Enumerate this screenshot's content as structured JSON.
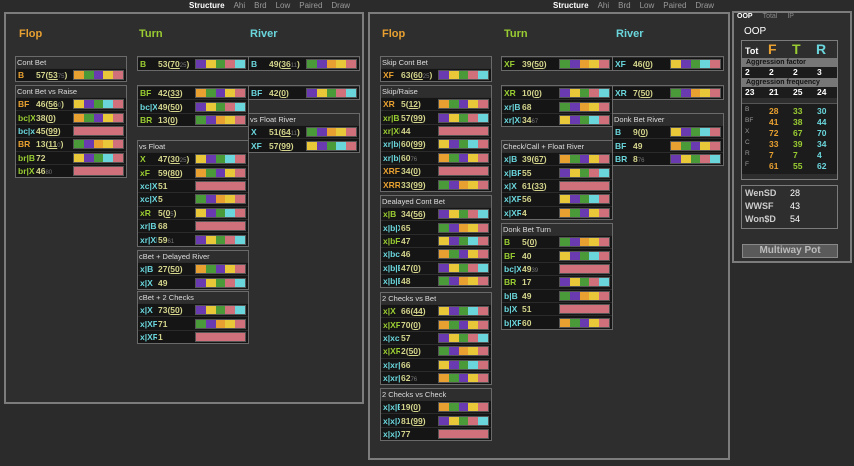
{
  "top_tabs": [
    {
      "labels": [
        "Structure",
        "Ahi",
        "Brd",
        "Low",
        "Paired",
        "Draw"
      ]
    },
    {
      "labels": [
        "Structure",
        "Ahi",
        "Brd",
        "Low",
        "Paired",
        "Draw"
      ]
    }
  ],
  "panels": [
    {
      "heads": [
        "Flop",
        "Turn",
        "River"
      ],
      "sections": [
        {
          "title": "Cont Bet",
          "rows": [
            {
              "a": "B",
              "c": "or",
              "v": "57(",
              "u": "53",
              "s": "75",
              "e": ")"
            }
          ]
        },
        {
          "title": "",
          "rows": [
            {
              "a": "B",
              "c": "gr",
              "v": "53(",
              "u": "70",
              "s": "25",
              "e": ")"
            }
          ]
        },
        {
          "title": "",
          "rows": [
            {
              "a": "B",
              "c": "cy",
              "v": "49(",
              "u": "36",
              "s": "11",
              "e": ")"
            }
          ]
        },
        {
          "title": "Cont Bet vs Raise",
          "rows": [
            {
              "a": "BF",
              "c": "or",
              "v": "46(",
              "u": "56",
              "s": "0",
              "e": ")"
            },
            {
              "a": "bc|XF",
              "c": "gr",
              "v": "38(",
              "u": "0",
              "s": "",
              "e": ")"
            },
            {
              "a": "bc|xc|XF",
              "c": "cy",
              "v": "45(",
              "u": "99",
              "s": "",
              "e": ")"
            },
            {
              "a": "BR",
              "c": "or",
              "v": "13(",
              "u": "11",
              "s": "0",
              "e": ")"
            },
            {
              "a": "br|B",
              "c": "gr",
              "v": "72",
              "u": "",
              "s": "",
              "e": ""
            },
            {
              "a": "br|XF",
              "c": "gr",
              "v": "46",
              "u": "",
              "s": "80",
              "e": ""
            }
          ]
        },
        {
          "title": "",
          "rows": [
            {
              "a": "BF",
              "c": "gr",
              "v": "42(",
              "u": "33",
              "s": "",
              "e": ")"
            },
            {
              "a": "bc|XF",
              "c": "cy",
              "v": "49(",
              "u": "50",
              "s": "",
              "e": ")"
            },
            {
              "a": "BR",
              "c": "gr",
              "v": "13(",
              "u": "0",
              "s": "",
              "e": ")"
            }
          ]
        },
        {
          "title": "",
          "rows": [
            {
              "a": "BF",
              "c": "cy",
              "v": "42(",
              "u": "0",
              "s": "",
              "e": ")"
            }
          ]
        },
        {
          "title": "vs Float River",
          "rows": [
            {
              "a": "X",
              "c": "cy",
              "v": "51(",
              "u": "64",
              "s": "11",
              "e": ")"
            },
            {
              "a": "XF",
              "c": "cy",
              "v": "57(",
              "u": "99",
              "s": "",
              "e": ")"
            }
          ]
        },
        {
          "title": "vs Float",
          "rows": [
            {
              "a": "X",
              "c": "gr",
              "v": "47(",
              "u": "30",
              "s": "25",
              "e": ")"
            },
            {
              "a": "xF",
              "c": "gr",
              "v": "59(",
              "u": "80",
              "s": "",
              "e": ")"
            },
            {
              "a": "xc|XF",
              "c": "cy",
              "v": "51",
              "u": "",
              "s": "",
              "e": ""
            },
            {
              "a": "xc|XR",
              "c": "cy",
              "v": "5",
              "u": "",
              "s": "",
              "e": ""
            },
            {
              "a": "xR",
              "c": "gr",
              "v": "5(",
              "u": "0",
              "s": "5",
              "e": ")"
            },
            {
              "a": "xr|B",
              "c": "cy",
              "v": "68",
              "u": "",
              "s": "",
              "e": ""
            },
            {
              "a": "xr|XF",
              "c": "cy",
              "v": "59",
              "u": "",
              "s": "61",
              "e": ""
            }
          ]
        },
        {
          "title": "cBet + Delayed River",
          "rows": [
            {
              "a": "x|B",
              "c": "cy",
              "v": "27(",
              "u": "50",
              "s": "",
              "e": ")"
            },
            {
              "a": "x|X",
              "c": "cy",
              "v": "49",
              "u": "",
              "s": "",
              "e": ""
            }
          ]
        },
        {
          "title": "cBet + 2 Checks",
          "rows": [
            {
              "a": "x|X",
              "c": "cy",
              "v": "73(",
              "u": "50",
              "s": "",
              "e": ")"
            },
            {
              "a": "x|XF",
              "c": "cy",
              "v": "71",
              "u": "",
              "s": "",
              "e": ""
            },
            {
              "a": "x|XR",
              "c": "cy",
              "v": "1",
              "u": "",
              "s": "",
              "e": ""
            }
          ]
        }
      ]
    },
    {
      "heads": [
        "Flop",
        "Turn",
        "River"
      ],
      "sections": [
        {
          "title": "Skip Cont Bet",
          "rows": [
            {
              "a": "XF",
              "c": "or",
              "v": "63(",
              "u": "60",
              "s": "25",
              "e": ")"
            }
          ]
        },
        {
          "title": "",
          "rows": [
            {
              "a": "XF",
              "c": "gr",
              "v": "39(",
              "u": "50",
              "s": "",
              "e": ")"
            }
          ]
        },
        {
          "title": "",
          "rows": [
            {
              "a": "XF",
              "c": "cy",
              "v": "46(",
              "u": "0",
              "s": "",
              "e": ")"
            }
          ]
        },
        {
          "title": "Skip/Raise",
          "rows": [
            {
              "a": "XR",
              "c": "or",
              "v": "5(",
              "u": "12",
              "s": "",
              "e": ")"
            },
            {
              "a": "xr|B",
              "c": "gr",
              "v": "57(",
              "u": "99",
              "s": "",
              "e": ")"
            },
            {
              "a": "xr|XF",
              "c": "gr",
              "v": "44",
              "u": "",
              "s": "",
              "e": ""
            },
            {
              "a": "xr|b|B",
              "c": "cy",
              "v": "60(",
              "u": "99",
              "s": "",
              "e": ")"
            },
            {
              "a": "xr|b|XF",
              "c": "cy",
              "v": "60",
              "u": "",
              "s": "76",
              "e": ""
            },
            {
              "a": "XRF",
              "c": "or",
              "v": "34(",
              "u": "0",
              "s": "",
              "e": ")"
            },
            {
              "a": "XRR",
              "c": "or",
              "v": "33(",
              "u": "99",
              "s": "",
              "e": ")"
            }
          ]
        },
        {
          "title": "",
          "rows": [
            {
              "a": "XR",
              "c": "gr",
              "v": "10(",
              "u": "0",
              "s": "",
              "e": ")"
            },
            {
              "a": "xr|B",
              "c": "cy",
              "v": "68",
              "u": "",
              "s": "",
              "e": ""
            },
            {
              "a": "xr|XF",
              "c": "cy",
              "v": "34",
              "u": "",
              "s": "67",
              "e": ""
            }
          ]
        },
        {
          "title": "",
          "rows": [
            {
              "a": "XR",
              "c": "cy",
              "v": "7(",
              "u": "50",
              "s": "",
              "e": ")"
            }
          ]
        },
        {
          "title": "Donk Bet River",
          "rows": [
            {
              "a": "B",
              "c": "cy",
              "v": "9(",
              "u": "0",
              "s": "",
              "e": ")"
            },
            {
              "a": "BF",
              "c": "cy",
              "v": "49",
              "u": "",
              "s": "",
              "e": ""
            },
            {
              "a": "BR",
              "c": "cy",
              "v": "8",
              "u": "",
              "s": "76",
              "e": ""
            }
          ]
        },
        {
          "title": "Check/Call + Float River",
          "rows": [
            {
              "a": "x|B",
              "c": "cy",
              "v": "39(",
              "u": "67",
              "s": "",
              "e": ")"
            },
            {
              "a": "x|BF",
              "c": "cy",
              "v": "55",
              "u": "",
              "s": "",
              "e": ""
            },
            {
              "a": "x|X",
              "c": "cy",
              "v": "61(",
              "u": "33",
              "s": "",
              "e": ")"
            },
            {
              "a": "x|XF",
              "c": "cy",
              "v": "56",
              "u": "",
              "s": "",
              "e": ""
            },
            {
              "a": "x|XR",
              "c": "cy",
              "v": "4",
              "u": "",
              "s": "",
              "e": ""
            }
          ]
        },
        {
          "title": "Dealayed Cont Bet",
          "rows": [
            {
              "a": "x|B",
              "c": "gr",
              "v": "34(",
              "u": "56",
              "s": "",
              "e": ")"
            },
            {
              "a": "x|b|XF",
              "c": "cy",
              "v": "65",
              "u": "",
              "s": "",
              "e": ""
            },
            {
              "a": "x|bF",
              "c": "gr",
              "v": "47",
              "u": "",
              "s": "",
              "e": ""
            },
            {
              "a": "x|bc|XF",
              "c": "cy",
              "v": "46",
              "u": "",
              "s": "",
              "e": ""
            },
            {
              "a": "x|b|B",
              "c": "cy",
              "v": "47(",
              "u": "0",
              "s": "",
              "e": ")"
            },
            {
              "a": "x|b|BF",
              "c": "cy",
              "v": "48",
              "u": "",
              "s": "",
              "e": ""
            }
          ]
        },
        {
          "title": "Donk Bet Turn",
          "rows": [
            {
              "a": "B",
              "c": "gr",
              "v": "5(",
              "u": "0",
              "s": "",
              "e": ")"
            },
            {
              "a": "BF",
              "c": "gr",
              "v": "40",
              "u": "",
              "s": "",
              "e": ""
            },
            {
              "a": "bc|XF",
              "c": "cy",
              "v": "49",
              "u": "",
              "s": "39",
              "e": ""
            },
            {
              "a": "BR",
              "c": "gr",
              "v": "17",
              "u": "",
              "s": "",
              "e": ""
            },
            {
              "a": "b|B",
              "c": "cy",
              "v": "49",
              "u": "",
              "s": "",
              "e": ""
            },
            {
              "a": "b|X",
              "c": "cy",
              "v": "51",
              "u": "",
              "s": "",
              "e": ""
            },
            {
              "a": "b|XF",
              "c": "cy",
              "v": "60",
              "u": "",
              "s": "",
              "e": ""
            }
          ]
        },
        {
          "title": "2 Checks vs Bet",
          "rows": [
            {
              "a": "x|X",
              "c": "gr",
              "v": "66(",
              "u": "44",
              "s": "",
              "e": ")"
            },
            {
              "a": "x|XF",
              "c": "gr",
              "v": "70(",
              "u": "0",
              "s": "",
              "e": ")"
            },
            {
              "a": "x|xc|XF",
              "c": "cy",
              "v": "57",
              "u": "",
              "s": "",
              "e": ""
            },
            {
              "a": "x|XR",
              "c": "gr",
              "v": "2(",
              "u": "50",
              "s": "",
              "e": ")"
            },
            {
              "a": "x|xr|B",
              "c": "cy",
              "v": "66",
              "u": "",
              "s": "",
              "e": ""
            },
            {
              "a": "x|xr|XF",
              "c": "cy",
              "v": "62",
              "u": "",
              "s": "76",
              "e": ""
            }
          ]
        },
        {
          "title": "2 Checks vs Check",
          "rows": [
            {
              "a": "x|x|B",
              "c": "cy",
              "v": "19(",
              "u": "0",
              "s": "",
              "e": ")"
            },
            {
              "a": "x|x|X",
              "c": "cy",
              "v": "81(",
              "u": "99",
              "s": "",
              "e": ")"
            },
            {
              "a": "x|x|XF",
              "c": "cy",
              "v": "77",
              "u": "",
              "s": "",
              "e": ""
            }
          ]
        }
      ]
    }
  ],
  "side": {
    "tabs": [
      "OOP",
      "Total",
      "IP"
    ],
    "title": "OOP",
    "tot": "Tot",
    "F": "F",
    "T": "T",
    "R": "R",
    "agg_factor_label": "Aggression factor",
    "agg_factor": [
      "2",
      "2",
      "3"
    ],
    "agg_tot": "2",
    "agg_freq_label": "Aggression frequency",
    "agg_freq": [
      "21",
      "25",
      "24"
    ],
    "agg_freq_tot": "23",
    "acts": [
      {
        "a": "B",
        "v": [
          "28",
          "33",
          "30"
        ]
      },
      {
        "a": "BF",
        "v": [
          "41",
          "38",
          "44"
        ]
      },
      {
        "a": "X",
        "v": [
          "72",
          "67",
          "70"
        ]
      },
      {
        "a": "C",
        "v": [
          "33",
          "39",
          "34"
        ]
      },
      {
        "a": "R",
        "v": [
          "7",
          "7",
          "4"
        ]
      },
      {
        "a": "F",
        "v": [
          "61",
          "55",
          "62"
        ]
      }
    ],
    "stats": [
      {
        "k": "WenSD",
        "v": "28"
      },
      {
        "k": "WWSF",
        "v": "43"
      },
      {
        "k": "Won$D",
        "v": "54"
      }
    ],
    "multiway": "Multiway Pot"
  }
}
